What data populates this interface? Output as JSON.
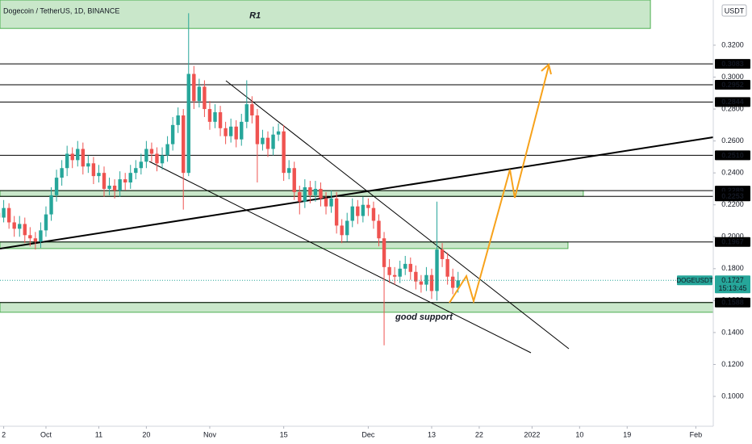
{
  "chart_data": {
    "type": "candlestick",
    "title": "Dogecoin / TetherUS, 1D, BINANCE",
    "currency": "USDT",
    "symbol": "DOGEUSDT",
    "countdown": "15:13:45",
    "annotation": "good support",
    "up_color": "#26a69a",
    "down_color": "#ef5350",
    "categories": [
      null,
      null,
      null,
      null,
      null,
      null,
      null,
      null,
      null,
      null,
      null,
      null,
      null,
      null,
      null,
      null,
      null,
      null,
      null,
      null,
      null,
      null,
      null,
      null,
      null,
      null,
      null,
      null,
      null,
      null,
      null,
      null,
      null,
      null,
      null,
      null,
      null,
      null,
      null,
      null,
      null,
      null,
      null,
      null,
      null,
      null,
      null,
      null,
      null,
      null,
      null,
      null,
      null,
      null,
      null,
      null,
      null,
      null,
      null,
      null,
      null,
      null,
      null,
      null,
      null,
      null,
      null,
      null,
      null,
      null,
      null,
      null,
      null,
      null,
      null,
      null,
      null,
      null,
      null,
      null,
      null,
      null,
      null,
      null,
      null,
      null,
      null,
      null
    ],
    "candles": [
      [
        0.215,
        0.222,
        0.208,
        0.212
      ],
      [
        0.212,
        0.223,
        0.209,
        0.218
      ],
      [
        0.218,
        0.221,
        0.205,
        0.209
      ],
      [
        0.209,
        0.213,
        0.2,
        0.205
      ],
      [
        0.205,
        0.213,
        0.2,
        0.208
      ],
      [
        0.208,
        0.212,
        0.196,
        0.201
      ],
      [
        0.201,
        0.206,
        0.194,
        0.199
      ],
      [
        0.199,
        0.203,
        0.192,
        0.197
      ],
      [
        0.197,
        0.209,
        0.193,
        0.204
      ],
      [
        0.204,
        0.219,
        0.2,
        0.214
      ],
      [
        0.214,
        0.231,
        0.21,
        0.226
      ],
      [
        0.226,
        0.242,
        0.222,
        0.237
      ],
      [
        0.237,
        0.248,
        0.232,
        0.243
      ],
      [
        0.243,
        0.257,
        0.238,
        0.252
      ],
      [
        0.252,
        0.256,
        0.243,
        0.248
      ],
      [
        0.248,
        0.26,
        0.244,
        0.255
      ],
      [
        0.255,
        0.259,
        0.239,
        0.244
      ],
      [
        0.244,
        0.251,
        0.24,
        0.246
      ],
      [
        0.246,
        0.25,
        0.233,
        0.238
      ],
      [
        0.238,
        0.245,
        0.234,
        0.24
      ],
      [
        0.24,
        0.244,
        0.225,
        0.23
      ],
      [
        0.23,
        0.237,
        0.226,
        0.232
      ],
      [
        0.232,
        0.236,
        0.224,
        0.229
      ],
      [
        0.229,
        0.241,
        0.225,
        0.236
      ],
      [
        0.236,
        0.24,
        0.229,
        0.234
      ],
      [
        0.234,
        0.245,
        0.23,
        0.24
      ],
      [
        0.24,
        0.248,
        0.236,
        0.243
      ],
      [
        0.243,
        0.252,
        0.239,
        0.247
      ],
      [
        0.247,
        0.26,
        0.243,
        0.255
      ],
      [
        0.255,
        0.259,
        0.247,
        0.252
      ],
      [
        0.252,
        0.256,
        0.241,
        0.246
      ],
      [
        0.246,
        0.256,
        0.242,
        0.251
      ],
      [
        0.251,
        0.263,
        0.247,
        0.258
      ],
      [
        0.258,
        0.275,
        0.254,
        0.27
      ],
      [
        0.27,
        0.281,
        0.265,
        0.276
      ],
      [
        0.276,
        0.28,
        0.217,
        0.24
      ],
      [
        0.24,
        0.34,
        0.238,
        0.302
      ],
      [
        0.302,
        0.307,
        0.28,
        0.285
      ],
      [
        0.285,
        0.299,
        0.281,
        0.294
      ],
      [
        0.294,
        0.298,
        0.275,
        0.28
      ],
      [
        0.28,
        0.285,
        0.267,
        0.272
      ],
      [
        0.272,
        0.283,
        0.268,
        0.278
      ],
      [
        0.278,
        0.282,
        0.263,
        0.268
      ],
      [
        0.268,
        0.272,
        0.258,
        0.263
      ],
      [
        0.263,
        0.274,
        0.259,
        0.269
      ],
      [
        0.269,
        0.273,
        0.256,
        0.261
      ],
      [
        0.261,
        0.277,
        0.257,
        0.272
      ],
      [
        0.272,
        0.298,
        0.268,
        0.283
      ],
      [
        0.283,
        0.288,
        0.271,
        0.276
      ],
      [
        0.276,
        0.28,
        0.234,
        0.258
      ],
      [
        0.258,
        0.267,
        0.254,
        0.262
      ],
      [
        0.262,
        0.266,
        0.25,
        0.255
      ],
      [
        0.255,
        0.269,
        0.251,
        0.264
      ],
      [
        0.264,
        0.271,
        0.26,
        0.266
      ],
      [
        0.266,
        0.27,
        0.235,
        0.24
      ],
      [
        0.24,
        0.248,
        0.236,
        0.243
      ],
      [
        0.243,
        0.247,
        0.223,
        0.228
      ],
      [
        0.228,
        0.232,
        0.214,
        0.222
      ],
      [
        0.222,
        0.236,
        0.218,
        0.231
      ],
      [
        0.231,
        0.235,
        0.221,
        0.226
      ],
      [
        0.226,
        0.235,
        0.222,
        0.23
      ],
      [
        0.23,
        0.234,
        0.219,
        0.224
      ],
      [
        0.224,
        0.228,
        0.214,
        0.219
      ],
      [
        0.219,
        0.229,
        0.215,
        0.224
      ],
      [
        0.224,
        0.228,
        0.202,
        0.207
      ],
      [
        0.207,
        0.211,
        0.196,
        0.201
      ],
      [
        0.201,
        0.215,
        0.197,
        0.21
      ],
      [
        0.21,
        0.224,
        0.206,
        0.219
      ],
      [
        0.219,
        0.223,
        0.208,
        0.213
      ],
      [
        0.213,
        0.225,
        0.209,
        0.22
      ],
      [
        0.22,
        0.224,
        0.213,
        0.218
      ],
      [
        0.218,
        0.222,
        0.205,
        0.21
      ],
      [
        0.21,
        0.214,
        0.194,
        0.199
      ],
      [
        0.199,
        0.203,
        0.132,
        0.181
      ],
      [
        0.181,
        0.186,
        0.171,
        0.176
      ],
      [
        0.176,
        0.181,
        0.17,
        0.175
      ],
      [
        0.175,
        0.185,
        0.171,
        0.18
      ],
      [
        0.18,
        0.188,
        0.176,
        0.183
      ],
      [
        0.183,
        0.187,
        0.173,
        0.178
      ],
      [
        0.178,
        0.182,
        0.167,
        0.172
      ],
      [
        0.172,
        0.176,
        0.165,
        0.17
      ],
      [
        0.17,
        0.181,
        0.166,
        0.176
      ],
      [
        0.176,
        0.18,
        0.161,
        0.166
      ],
      [
        0.166,
        0.222,
        0.16,
        0.192
      ],
      [
        0.192,
        0.196,
        0.181,
        0.186
      ],
      [
        0.186,
        0.19,
        0.17,
        0.175
      ],
      [
        0.175,
        0.18,
        0.164,
        0.168
      ],
      [
        0.168,
        0.178,
        0.165,
        0.1727
      ]
    ],
    "xlim": [
      0.3,
      135.3
    ],
    "xticks": [
      {
        "value": 1,
        "label": "2"
      },
      {
        "value": 9,
        "label": "Oct"
      },
      {
        "value": 19,
        "label": "11"
      },
      {
        "value": 28,
        "label": "20"
      },
      {
        "value": 40,
        "label": "Nov"
      },
      {
        "value": 54,
        "label": "15"
      },
      {
        "value": 70,
        "label": "Dec"
      },
      {
        "value": 82,
        "label": "13"
      },
      {
        "value": 91,
        "label": "22"
      },
      {
        "value": 101,
        "label": "2022"
      },
      {
        "value": 110,
        "label": "10"
      },
      {
        "value": 119,
        "label": "19"
      },
      {
        "value": 132,
        "label": "Feb"
      }
    ],
    "ylim": [
      0.0813,
      0.3483
    ],
    "yticks": [
      {
        "value": 0.1,
        "label": "0.1000"
      },
      {
        "value": 0.12,
        "label": "0.1200"
      },
      {
        "value": 0.14,
        "label": "0.1400"
      },
      {
        "value": 0.16,
        "label": "0.1600"
      },
      {
        "value": 0.18,
        "label": "0.1800"
      },
      {
        "value": 0.2,
        "label": "0.2000"
      },
      {
        "value": 0.22,
        "label": "0.2200"
      },
      {
        "value": 0.24,
        "label": "0.2400"
      },
      {
        "value": 0.26,
        "label": "0.2600"
      },
      {
        "value": 0.28,
        "label": "0.2800"
      },
      {
        "value": 0.3,
        "label": "0.3000"
      },
      {
        "value": 0.32,
        "label": "0.3200"
      }
    ],
    "levels": [
      {
        "value": 0.3083,
        "label": "0.3083"
      },
      {
        "value": 0.2952,
        "label": "0.2952"
      },
      {
        "value": 0.2844,
        "label": "0.2844"
      },
      {
        "value": 0.251,
        "label": "0.2510"
      },
      {
        "value": 0.2289,
        "label": "0.2289"
      },
      {
        "value": 0.2253,
        "label": "0.2253"
      },
      {
        "value": 0.1967,
        "label": "0.1967"
      },
      {
        "value": 0.1588,
        "label": "0.1588"
      }
    ],
    "zones": [
      {
        "label": "R1",
        "low": 0.3305,
        "high": 0.3483,
        "end": 123.4
      },
      {
        "low": 0.2253,
        "high": 0.2289,
        "end": 110.7
      },
      {
        "low": 0.1926,
        "high": 0.1967,
        "end": 107.8
      },
      {
        "low": 0.1527,
        "high": 0.1588,
        "end": 135.3
      }
    ],
    "last_price": {
      "value": 0.1727,
      "label": "0.1727"
    }
  }
}
